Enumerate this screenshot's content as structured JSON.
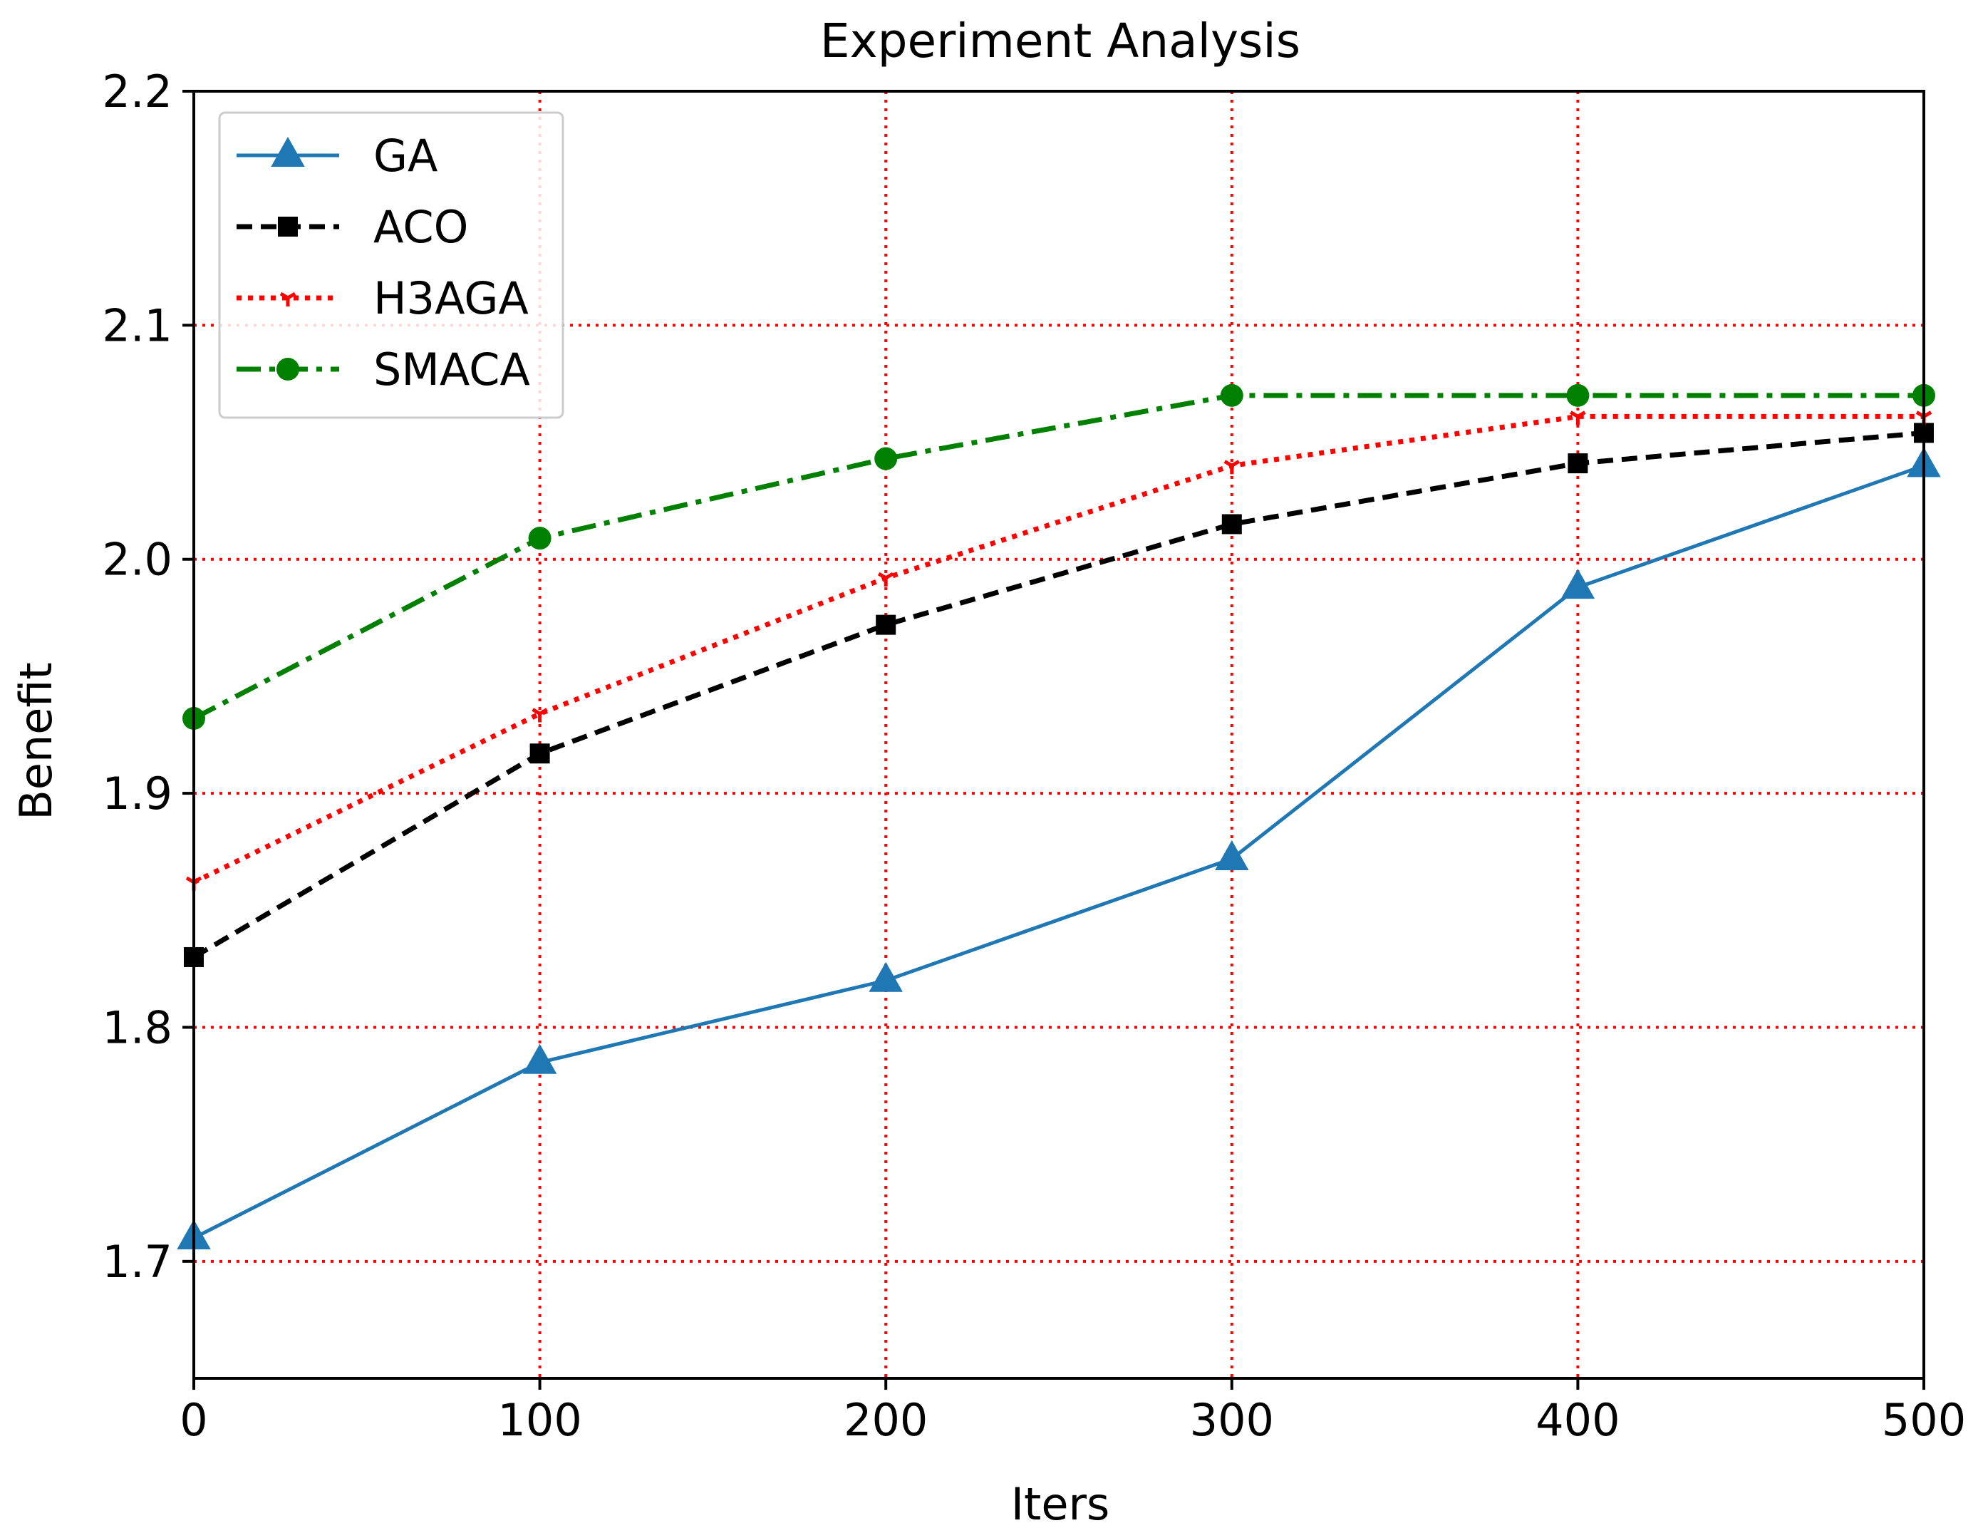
{
  "chart_data": {
    "type": "line",
    "title": "Experiment Analysis",
    "xlabel": "Iters",
    "ylabel": "Benefit",
    "xlim": [
      0,
      500
    ],
    "ylim": [
      1.65,
      2.2
    ],
    "x": [
      0,
      100,
      200,
      300,
      400,
      500
    ],
    "xticks": [
      "0",
      "100",
      "200",
      "300",
      "400",
      "500"
    ],
    "yticks": [
      "1.7",
      "1.8",
      "1.9",
      "2.0",
      "2.1",
      "2.2"
    ],
    "ytick_values": [
      1.7,
      1.8,
      1.9,
      2.0,
      2.1,
      2.2
    ],
    "grid": true,
    "grid_color": "#ff0000",
    "legend_position": "top-left",
    "series": [
      {
        "name": "GA",
        "color": "#1f77b4",
        "line_style": "solid",
        "marker": "triangle",
        "values": [
          1.71,
          1.785,
          1.82,
          1.872,
          1.988,
          2.04
        ]
      },
      {
        "name": "ACO",
        "color": "#000000",
        "line_style": "dashed",
        "marker": "square",
        "values": [
          1.83,
          1.917,
          1.972,
          2.015,
          2.041,
          2.054
        ]
      },
      {
        "name": "H3AGA",
        "color": "#ff0000",
        "line_style": "dotted",
        "marker": "tri-down",
        "values": [
          1.862,
          1.934,
          1.992,
          2.04,
          2.061,
          2.061
        ]
      },
      {
        "name": "SMACA",
        "color": "#008000",
        "line_style": "dashdot",
        "marker": "circle",
        "values": [
          1.932,
          2.009,
          2.043,
          2.07,
          2.07,
          2.07
        ]
      }
    ]
  }
}
